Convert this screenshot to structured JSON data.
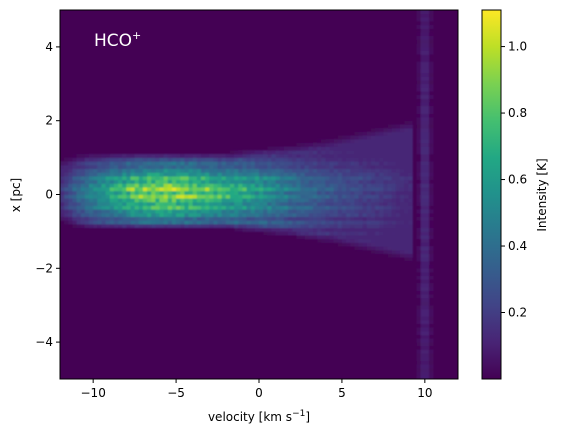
{
  "chart_data": {
    "type": "heatmap",
    "annotation": {
      "main": "HCO",
      "sup": "+"
    },
    "xlabel": {
      "main": "velocity [km s",
      "sup": "−1",
      "tail": "]"
    },
    "ylabel": "x [pc]",
    "xlim": [
      -12,
      12
    ],
    "ylim": [
      -5,
      5
    ],
    "xticks": [
      {
        "value": -10,
        "label": "−10"
      },
      {
        "value": -5,
        "label": "−5"
      },
      {
        "value": 0,
        "label": "0"
      },
      {
        "value": 5,
        "label": "5"
      },
      {
        "value": 10,
        "label": "10"
      }
    ],
    "yticks": [
      {
        "value": -4,
        "label": "−4"
      },
      {
        "value": -2,
        "label": "−2"
      },
      {
        "value": 0,
        "label": "0"
      },
      {
        "value": 2,
        "label": "2"
      },
      {
        "value": 4,
        "label": "4"
      }
    ],
    "colorbar": {
      "label": "Intensity [K]",
      "colormap": "viridis",
      "range": [
        0.0,
        1.11
      ],
      "ticks": [
        {
          "value": 0.2,
          "label": "0.2"
        },
        {
          "value": 0.4,
          "label": "0.4"
        },
        {
          "value": 0.6,
          "label": "0.6"
        },
        {
          "value": 0.8,
          "label": "0.8"
        },
        {
          "value": 1.0,
          "label": "1.0"
        }
      ]
    },
    "emission_profile": {
      "v": [
        -12,
        -11,
        -10,
        -9,
        -8,
        -7,
        -6,
        -5,
        -4,
        -3,
        -2,
        -1,
        0,
        1,
        2,
        3,
        4,
        5,
        6,
        7,
        8,
        9
      ],
      "half_width_pc": [
        0.85,
        1.0,
        1.05,
        1.05,
        1.05,
        1.05,
        1.05,
        1.05,
        1.05,
        1.05,
        1.05,
        1.1,
        1.15,
        1.2,
        1.25,
        1.35,
        1.4,
        1.5,
        1.6,
        1.7,
        1.8,
        1.9
      ],
      "peak_intensity": [
        0.2,
        0.45,
        0.62,
        0.78,
        0.92,
        1.05,
        1.1,
        1.08,
        1.02,
        0.95,
        0.88,
        0.8,
        0.72,
        0.62,
        0.52,
        0.44,
        0.38,
        0.32,
        0.28,
        0.24,
        0.2,
        0.16
      ]
    },
    "edge_feature": {
      "velocity": 10,
      "x_range": [
        -5,
        5
      ],
      "intensity": 0.12
    }
  },
  "colors": {
    "viridis": [
      "#440154",
      "#482475",
      "#414487",
      "#355f8d",
      "#2a788e",
      "#21918c",
      "#22a884",
      "#44bf70",
      "#7ad151",
      "#bddf26",
      "#fde725"
    ]
  }
}
